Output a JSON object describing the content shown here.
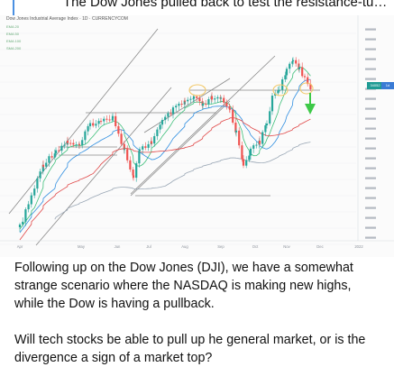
{
  "post": {
    "title": "The Dow Jones pulled back to test the resistance-turned-s...",
    "body": [
      "Following up on the Dow Jones (DJI), we have a somewhat strange scenario where the NASDAQ is making new highs, while the Dow is having a pullback.",
      "Will tech stocks be able to pull up he general market, or is the divergence a sign of a market top?"
    ]
  },
  "chart": {
    "header_text": "Dow Jones Industrial Average Index · 1D · CURRENCYCOM",
    "legend": [
      "EMA 20",
      "EMA 50",
      "EMA 100",
      "SMA 200"
    ],
    "price_tag": "34052",
    "price_tag_right": "1d",
    "x_labels": [
      "Apr",
      "May",
      "Jun",
      "Jul",
      "Aug",
      "Sep",
      "Oct",
      "Nov",
      "Dec",
      "2022"
    ],
    "colors": {
      "up": "#26a69a",
      "down": "#ef5350",
      "ema_fast": "#3ebf7a",
      "ema_mid": "#2f8ee0",
      "ema_slow": "#e04848",
      "sma": "#9aa7b5",
      "arrow": "#3ec948",
      "highlight": "#f2c96b"
    }
  }
}
